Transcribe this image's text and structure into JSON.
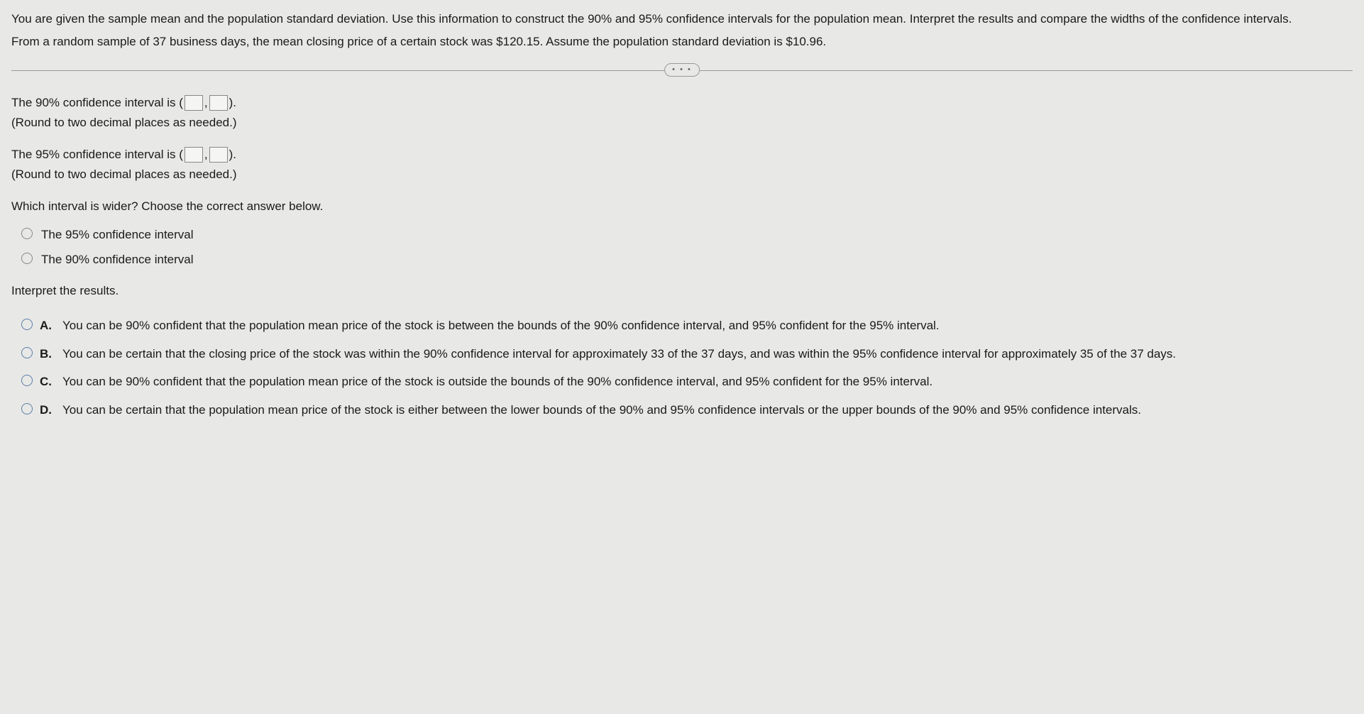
{
  "problem": {
    "statement": "You are given the sample mean and the population standard deviation. Use this information to construct the 90% and 95% confidence intervals for the population mean. Interpret the results and compare the widths of the confidence intervals.",
    "given": "From a random sample of 37 business days, the mean closing price of a certain stock was $120.15. Assume the population standard deviation is $10.96."
  },
  "divider": {
    "label": "• • •"
  },
  "ci90": {
    "prefix": "The 90% confidence interval is (",
    "comma": ",",
    "suffix": ").",
    "round": "(Round to two decimal places as needed.)"
  },
  "ci95": {
    "prefix": "The 95% confidence interval is (",
    "comma": ",",
    "suffix": ").",
    "round": "(Round to two decimal places as needed.)"
  },
  "wider": {
    "question": "Which interval is wider? Choose the correct answer below.",
    "options": [
      "The 95% confidence interval",
      "The 90% confidence interval"
    ]
  },
  "interpret": {
    "title": "Interpret the results.",
    "options": [
      {
        "letter": "A.",
        "text": "You can be 90% confident that the population mean price of the stock is between the bounds of the 90% confidence interval, and 95% confident for the 95% interval."
      },
      {
        "letter": "B.",
        "text": "You can be certain that the closing price of the stock was within the 90% confidence interval for approximately 33 of the 37 days, and was within the 95% confidence interval for approximately 35 of the 37 days."
      },
      {
        "letter": "C.",
        "text": "You can be 90% confident that the population mean price of the stock is outside the bounds of the 90% confidence interval, and 95% confident for the 95% interval."
      },
      {
        "letter": "D.",
        "text": "You can be certain that the population mean price of the stock is either between the lower bounds of the 90% and 95% confidence intervals or the upper bounds of the 90% and 95% confidence intervals."
      }
    ]
  },
  "colors": {
    "background": "#e8e8e6",
    "text": "#1a1a1a",
    "divider": "#999999",
    "radio_border": "#5a7fa8",
    "input_border": "#888888"
  }
}
